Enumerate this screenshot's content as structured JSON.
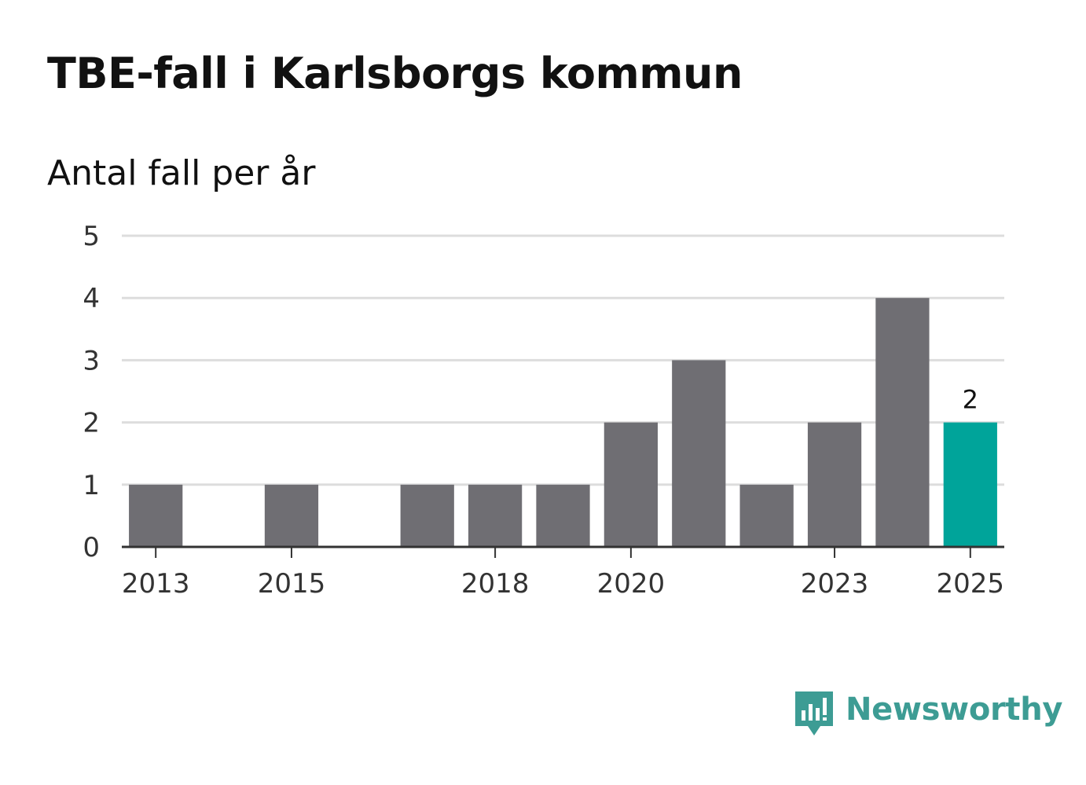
{
  "title": "TBE-fall i Karlsborgs kommun",
  "subtitle": "Antal fall per år",
  "brand": "Newsworthy",
  "colors": {
    "bar": "#6f6e73",
    "highlight": "#00a49a",
    "grid": "#dddddd",
    "axis": "#333333",
    "brand": "#3d9c94"
  },
  "chart_data": {
    "type": "bar",
    "x": [
      2013,
      2014,
      2015,
      2016,
      2017,
      2018,
      2019,
      2020,
      2021,
      2022,
      2023,
      2024,
      2025
    ],
    "values": [
      1,
      0,
      1,
      0,
      1,
      1,
      1,
      2,
      3,
      1,
      2,
      4,
      2
    ],
    "highlight_index": 12,
    "value_labels": [
      {
        "index": 12,
        "text": "2"
      }
    ],
    "x_tick_labels": [
      "2013",
      "2015",
      "2018",
      "2020",
      "2023",
      "2025"
    ],
    "y_ticks": [
      0,
      1,
      2,
      3,
      4,
      5
    ],
    "ylim": [
      0,
      5
    ],
    "grid": true
  }
}
